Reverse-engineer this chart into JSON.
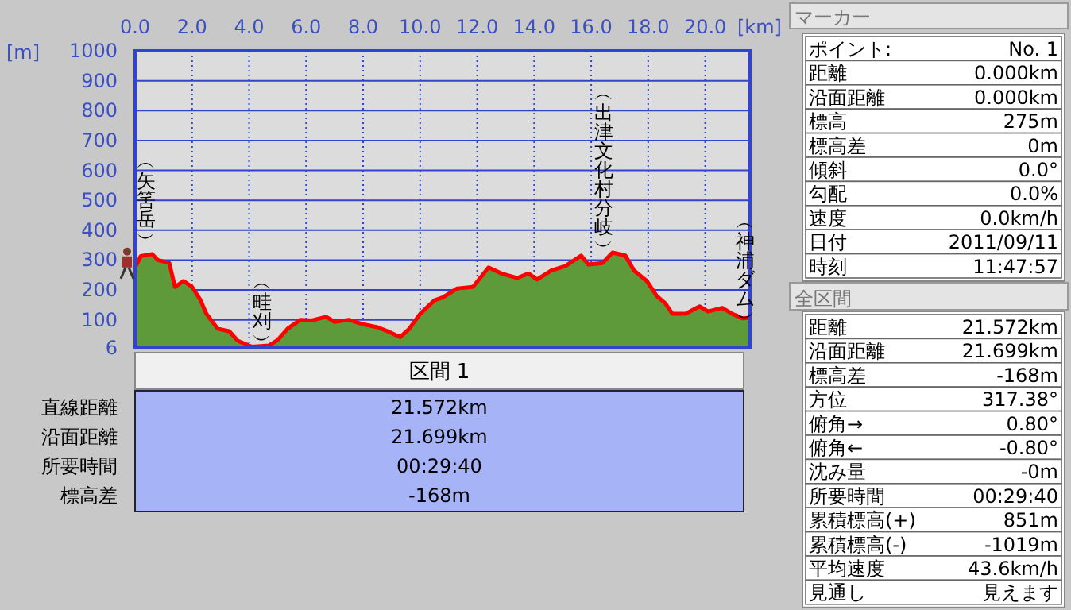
{
  "chart_data": [
    {
      "type": "area",
      "xlabel": "[km]",
      "ylabel": "[m]",
      "xlim": [
        0,
        21.572
      ],
      "ylim": [
        6,
        1000
      ],
      "xticks": [
        {
          "value": 0,
          "label": "0.0"
        },
        {
          "value": 2,
          "label": "2.0"
        },
        {
          "value": 4,
          "label": "4.0"
        },
        {
          "value": 6,
          "label": "6.0"
        },
        {
          "value": 8,
          "label": "8.0"
        },
        {
          "value": 10,
          "label": "10.0"
        },
        {
          "value": 12,
          "label": "12.0"
        },
        {
          "value": 14,
          "label": "14.0"
        },
        {
          "value": 16,
          "label": "16.0"
        },
        {
          "value": 18,
          "label": "18.0"
        },
        {
          "value": 20,
          "label": "20.0"
        }
      ],
      "yticks": [
        6,
        100,
        200,
        300,
        400,
        500,
        600,
        700,
        800,
        900,
        1000
      ],
      "grid": true,
      "x": [
        0,
        0.2,
        0.6,
        0.8,
        1.2,
        1.4,
        1.7,
        2.0,
        2.3,
        2.5,
        2.9,
        3.3,
        3.6,
        4.1,
        4.7,
        5.0,
        5.35,
        5.8,
        6.2,
        6.7,
        7.0,
        7.5,
        8.0,
        8.5,
        8.9,
        9.3,
        9.6,
        10.0,
        10.5,
        10.8,
        11.3,
        11.85,
        12.4,
        12.85,
        13.4,
        13.8,
        14.1,
        14.6,
        15.1,
        15.65,
        15.9,
        16.4,
        16.75,
        17.2,
        17.5,
        17.95,
        18.3,
        18.6,
        18.85,
        19.3,
        19.8,
        20.1,
        20.6,
        20.95,
        21.3,
        21.572
      ],
      "series": [
        {
          "type": "area",
          "color": "#5e9a3a",
          "values": [
            275,
            313,
            320,
            300,
            290,
            210,
            230,
            210,
            165,
            120,
            70,
            62,
            30,
            10,
            14,
            32,
            70,
            100,
            98,
            110,
            93,
            100,
            85,
            75,
            60,
            42,
            68,
            120,
            165,
            175,
            205,
            210,
            275,
            255,
            240,
            255,
            235,
            265,
            280,
            315,
            285,
            290,
            325,
            315,
            265,
            230,
            180,
            155,
            120,
            120,
            145,
            128,
            140,
            120,
            105,
            107
          ]
        }
      ],
      "annotations": [
        "︵矢筈岳︶",
        "︵畦刈︶",
        "︵出津文化村分岐︶",
        "︵神浦ダム︶"
      ]
    },
    {
      "type": "other",
      "title": "区間 1",
      "annotations": [
        "直線距離",
        "21.572km",
        "沿面距離",
        "21.699km",
        "所要時間",
        "00:29:40",
        "標高差",
        "-168m"
      ]
    },
    {
      "type": "other",
      "title": "マーカー",
      "annotations": [
        "ポイント:",
        "No. 1",
        "距離",
        "0.000km",
        "沿面距離",
        "0.000km",
        "標高",
        "275m",
        "標高差",
        "0m",
        "傾斜",
        "0.0°",
        "勾配",
        "0.0%",
        "速度",
        "0.0km/h",
        "日付",
        "2011/09/11",
        "時刻",
        "11:47:57"
      ]
    },
    {
      "type": "other",
      "title": "全区間",
      "annotations": [
        "距離",
        "21.572km",
        "沿面距離",
        "21.699km",
        "標高差",
        "-168m",
        "方位",
        "317.38°",
        "俯角→",
        "0.80°",
        "俯角←",
        "-0.80°",
        "沈み量",
        "-0m",
        "所要時間",
        "00:29:40",
        "累積標高(+)",
        "851m",
        "累積標高(-)",
        "-1019m",
        "平均速度",
        "43.6km/h",
        "見通し",
        "見えます"
      ]
    }
  ]
}
